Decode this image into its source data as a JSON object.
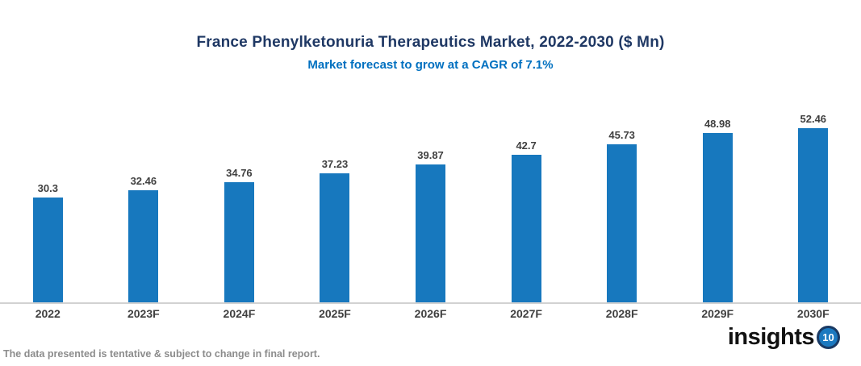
{
  "chart_data": {
    "type": "bar",
    "title": "France Phenylketonuria Therapeutics Market, 2022-2030 ($ Mn)",
    "subtitle": "Market forecast to grow at a CAGR of 7.1%",
    "categories": [
      "2022",
      "2023F",
      "2024F",
      "2025F",
      "2026F",
      "2027F",
      "2028F",
      "2029F",
      "2030F"
    ],
    "values": [
      30.3,
      32.46,
      34.76,
      37.23,
      39.87,
      42.7,
      45.73,
      48.98,
      52.46
    ],
    "xlabel": "",
    "ylabel": "",
    "ylim": [
      0,
      55
    ],
    "grid": false,
    "legend": "none",
    "data_labels": true,
    "bar_color": "#1778BE",
    "title_color": "#1F3864",
    "subtitle_color": "#0070C0",
    "value_label_color": "#404040",
    "axis_label_color": "#3F3F3F",
    "axis_line_color": "#D2D2D2"
  },
  "footer": {
    "note": "The data presented is tentative & subject to change in final report.",
    "note_color": "#8C8C8C",
    "logo_text": "insights",
    "logo_number": "10",
    "logo_circle_color": "#1B79C0",
    "logo_ring_color": "#1A3A64"
  }
}
